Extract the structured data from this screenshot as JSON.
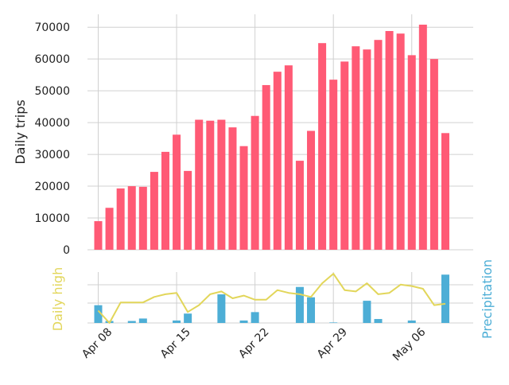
{
  "chart_data": [
    {
      "type": "bar",
      "ylabel": "Daily trips",
      "ylim": [
        0,
        74000
      ],
      "yticks": [
        0,
        10000,
        20000,
        30000,
        40000,
        50000,
        60000,
        70000
      ],
      "grid": true,
      "color": "#ff5a75",
      "x": [
        "2019-04-08",
        "2019-04-09",
        "2019-04-10",
        "2019-04-11",
        "2019-04-12",
        "2019-04-13",
        "2019-04-14",
        "2019-04-15",
        "2019-04-16",
        "2019-04-17",
        "2019-04-18",
        "2019-04-19",
        "2019-04-20",
        "2019-04-21",
        "2019-04-22",
        "2019-04-23",
        "2019-04-24",
        "2019-04-25",
        "2019-04-26",
        "2019-04-27",
        "2019-04-28",
        "2019-04-29",
        "2019-04-30",
        "2019-05-01",
        "2019-05-02",
        "2019-05-03",
        "2019-05-04",
        "2019-05-05",
        "2019-05-06",
        "2019-05-07",
        "2019-05-08",
        "2019-05-09"
      ],
      "values": [
        9000,
        13200,
        19300,
        20000,
        19800,
        24500,
        30800,
        36200,
        24800,
        40900,
        40600,
        40900,
        38500,
        32600,
        42100,
        51800,
        56000,
        58000,
        28000,
        37400,
        65000,
        53500,
        59200,
        64000,
        63000,
        66000,
        68800,
        68000,
        61200,
        70800,
        60000,
        36700
      ],
      "xticks": [
        "Apr 08",
        "Apr 15",
        "Apr 22",
        "Apr 29",
        "May 06"
      ]
    },
    {
      "type": "bar",
      "ylabel": "Precipitation",
      "color": "#4daed6",
      "x": [
        "2019-04-08",
        "2019-04-09",
        "2019-04-10",
        "2019-04-11",
        "2019-04-12",
        "2019-04-13",
        "2019-04-14",
        "2019-04-15",
        "2019-04-16",
        "2019-04-17",
        "2019-04-18",
        "2019-04-19",
        "2019-04-20",
        "2019-04-21",
        "2019-04-22",
        "2019-04-23",
        "2019-04-24",
        "2019-04-25",
        "2019-04-26",
        "2019-04-27",
        "2019-04-28",
        "2019-04-29",
        "2019-04-30",
        "2019-05-01",
        "2019-05-02",
        "2019-05-03",
        "2019-05-04",
        "2019-05-05",
        "2019-05-06",
        "2019-05-07",
        "2019-05-08",
        "2019-05-09"
      ],
      "values": [
        0.36,
        0.04,
        0,
        0.04,
        0.09,
        0,
        0,
        0.05,
        0.19,
        0,
        0,
        0.58,
        0,
        0.05,
        0.22,
        0,
        0,
        0,
        0.73,
        0.52,
        0,
        0.01,
        0,
        0,
        0.45,
        0.08,
        0,
        0,
        0.05,
        0,
        0,
        0.98
      ]
    },
    {
      "type": "line",
      "ylabel": "Daily high",
      "color": "#e2d65a",
      "x": [
        "2019-04-08",
        "2019-04-09",
        "2019-04-10",
        "2019-04-11",
        "2019-04-12",
        "2019-04-13",
        "2019-04-14",
        "2019-04-15",
        "2019-04-16",
        "2019-04-17",
        "2019-04-18",
        "2019-04-19",
        "2019-04-20",
        "2019-04-21",
        "2019-04-22",
        "2019-04-23",
        "2019-04-24",
        "2019-04-25",
        "2019-04-26",
        "2019-04-27",
        "2019-04-28",
        "2019-04-29",
        "2019-04-30",
        "2019-05-01",
        "2019-05-02",
        "2019-05-03",
        "2019-05-04",
        "2019-05-05",
        "2019-05-06",
        "2019-05-07",
        "2019-05-08",
        "2019-05-09"
      ],
      "values": [
        52,
        43,
        58,
        58,
        58,
        62,
        64,
        65,
        51,
        56,
        64,
        66,
        61,
        63,
        60,
        60,
        67,
        65,
        64,
        62,
        72,
        79,
        67,
        66,
        72,
        64,
        65,
        71,
        70,
        68,
        56,
        57
      ]
    }
  ]
}
